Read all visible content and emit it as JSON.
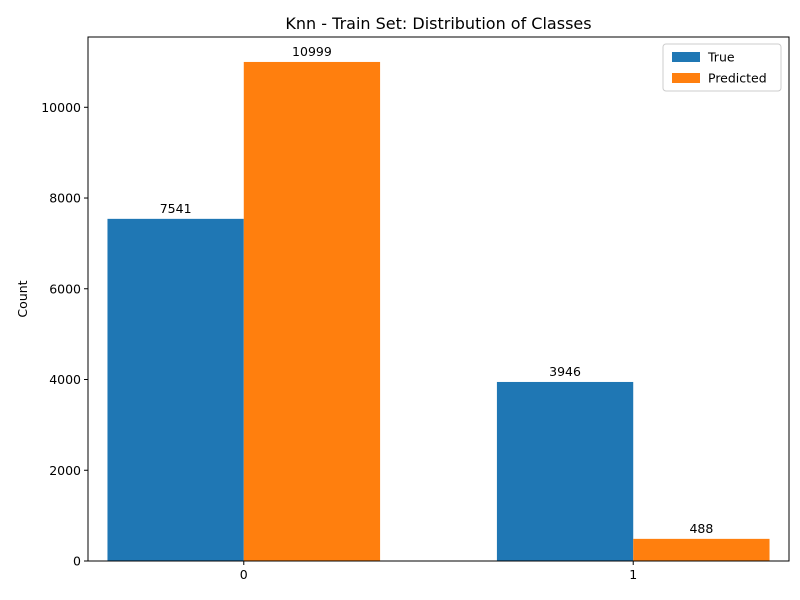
{
  "chart_data": {
    "type": "bar",
    "title": "Knn - Train Set: Distribution of Classes",
    "xlabel": "",
    "ylabel": "Count",
    "categories": [
      "0",
      "1"
    ],
    "series": [
      {
        "name": "True",
        "values": [
          7541,
          3946
        ],
        "color": "#1f77b4"
      },
      {
        "name": "Predicted",
        "values": [
          10999,
          488
        ],
        "color": "#ff7f0e"
      }
    ],
    "ylim": [
      0,
      11548.95
    ],
    "yticks": [
      0,
      2000,
      4000,
      6000,
      8000,
      10000
    ],
    "grid": false,
    "legend_position": "top-right"
  }
}
